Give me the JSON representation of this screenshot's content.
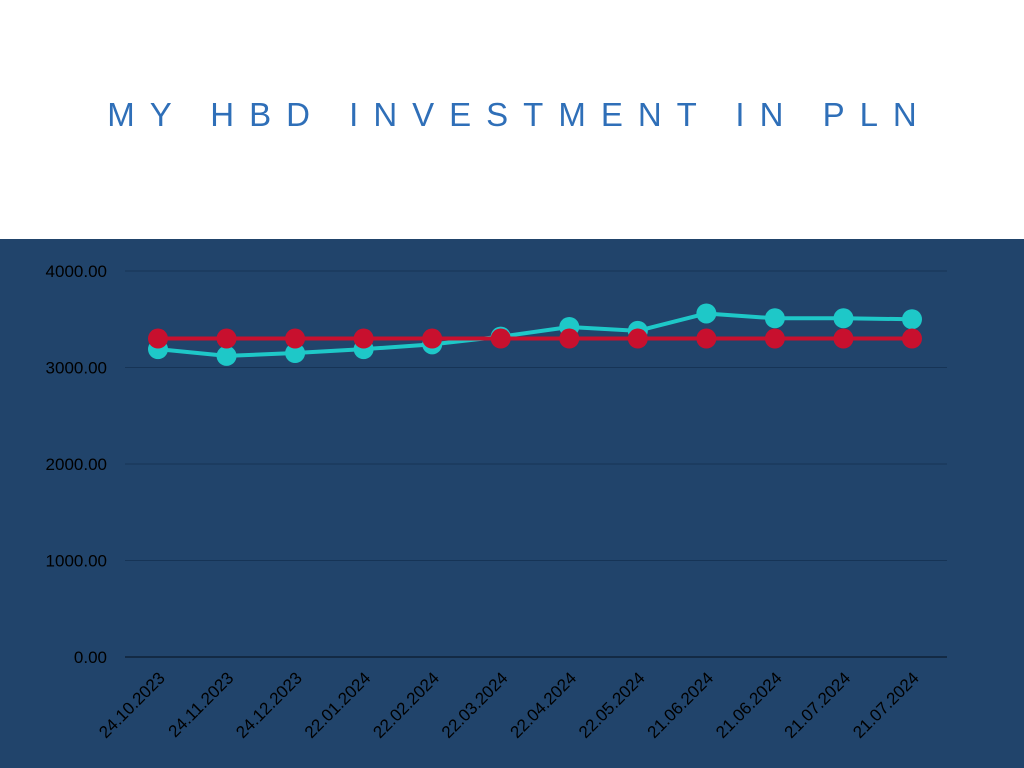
{
  "title": "MY HBD INVESTMENT IN PLN",
  "chart_data": {
    "type": "line",
    "title": "MY HBD INVESTMENT IN PLN",
    "xlabel": "",
    "ylabel": "",
    "categories": [
      "24.10.2023",
      "24.11.2023",
      "24.12.2023",
      "22.01.2024",
      "22.02.2024",
      "22.03.2024",
      "22.04.2024",
      "22.05.2024",
      "21.06.2024",
      "21.06.2024",
      "21.07.2024",
      "21.07.2024"
    ],
    "yticks": [
      "0.00",
      "1000.00",
      "2000.00",
      "3000.00",
      "4000.00"
    ],
    "ylim": [
      0,
      4000
    ],
    "grid": true,
    "legend": "none",
    "series": [
      {
        "color": "#1ec8c8",
        "values": [
          3190,
          3120,
          3150,
          3190,
          3240,
          3320,
          3420,
          3380,
          3560,
          3510,
          3510,
          3500
        ]
      },
      {
        "color": "#c8102e",
        "values": [
          3300,
          3300,
          3300,
          3300,
          3300,
          3300,
          3300,
          3300,
          3300,
          3300,
          3300,
          3300
        ]
      }
    ]
  }
}
